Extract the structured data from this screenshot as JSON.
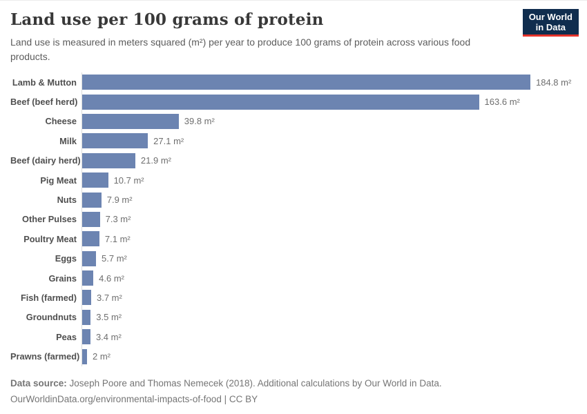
{
  "header": {
    "title": "Land use per 100 grams of protein",
    "subtitle": "Land use is measured in meters squared (m²) per year to produce 100 grams of protein across various food products.",
    "logo": {
      "line1": "Our World",
      "line2": "in Data",
      "bg_color": "#102d4e",
      "accent_color": "#e5332a"
    }
  },
  "chart_data": {
    "type": "bar",
    "orientation": "horizontal",
    "title": "Land use per 100 grams of protein",
    "xlabel": "",
    "ylabel": "",
    "unit": "m²",
    "xlim": [
      0,
      184.8
    ],
    "grid": false,
    "legend": "none",
    "bar_color": "#6c84b1",
    "axis_line_color": "#dcdcdc",
    "categories": [
      "Lamb & Mutton",
      "Beef (beef herd)",
      "Cheese",
      "Milk",
      "Beef (dairy herd)",
      "Pig Meat",
      "Nuts",
      "Other Pulses",
      "Poultry Meat",
      "Eggs",
      "Grains",
      "Fish (farmed)",
      "Groundnuts",
      "Peas",
      "Prawns (farmed)"
    ],
    "values": [
      184.8,
      163.6,
      39.8,
      27.1,
      21.9,
      10.7,
      7.9,
      7.3,
      7.1,
      5.7,
      4.6,
      3.7,
      3.5,
      3.4,
      2
    ],
    "value_labels": [
      "184.8 m²",
      "163.6 m²",
      "39.8 m²",
      "27.1 m²",
      "21.9 m²",
      "10.7 m²",
      "7.9 m²",
      "7.3 m²",
      "7.1 m²",
      "5.7 m²",
      "4.6 m²",
      "3.7 m²",
      "3.5 m²",
      "3.4 m²",
      "2 m²"
    ]
  },
  "footer": {
    "source_label": "Data source:",
    "source_text": "Joseph Poore and Thomas Nemecek (2018). Additional calculations by Our World in Data.",
    "link_text": "OurWorldinData.org/environmental-impacts-of-food | CC BY"
  }
}
